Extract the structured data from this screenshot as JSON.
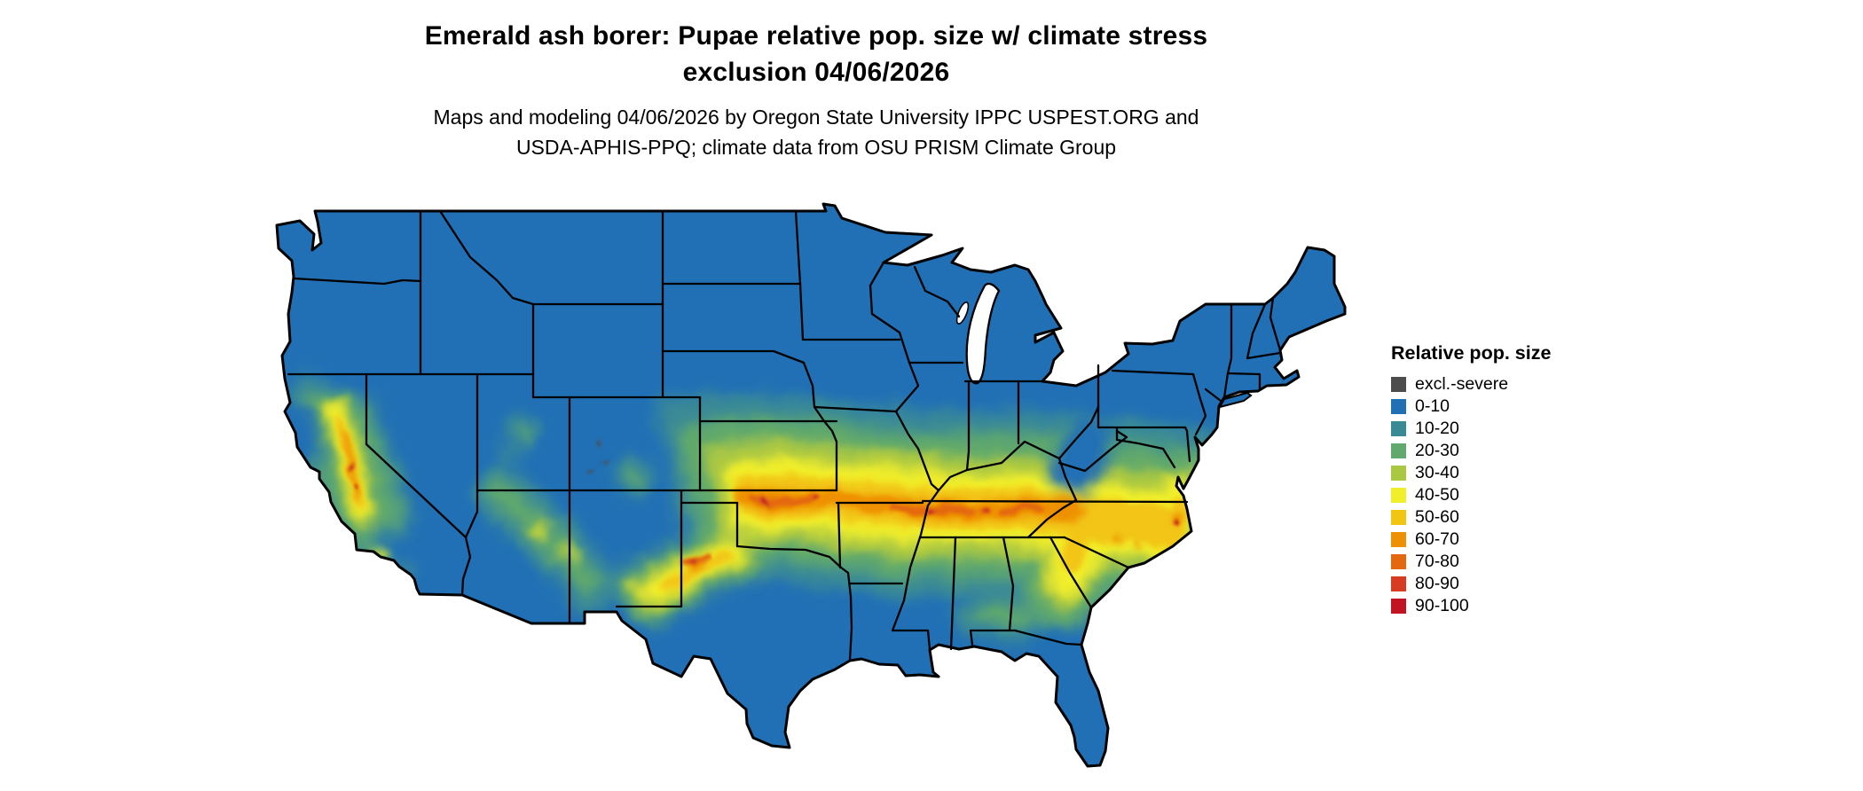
{
  "header": {
    "title_line1": "Emerald ash borer: Pupae relative pop. size w/ climate stress",
    "title_line2": "exclusion 04/06/2026",
    "subtitle_line1": "Maps and modeling 04/06/2026 by Oregon State University IPPC USPEST.ORG and",
    "subtitle_line2": "USDA-APHIS-PPQ; climate data from OSU PRISM Climate Group"
  },
  "legend": {
    "title": "Relative pop. size",
    "items": [
      {
        "label": "excl.-severe",
        "color": "#4d4d4d"
      },
      {
        "label": "0-10",
        "color": "#2170b5"
      },
      {
        "label": "10-20",
        "color": "#3a8a96"
      },
      {
        "label": "20-30",
        "color": "#61a96c"
      },
      {
        "label": "30-40",
        "color": "#abc843"
      },
      {
        "label": "40-50",
        "color": "#f1ee2b"
      },
      {
        "label": "50-60",
        "color": "#f2c513"
      },
      {
        "label": "60-70",
        "color": "#ee9006"
      },
      {
        "label": "70-80",
        "color": "#e4680f"
      },
      {
        "label": "80-90",
        "color": "#d73b21"
      },
      {
        "label": "90-100",
        "color": "#c11322"
      }
    ]
  },
  "map": {
    "region": "Continental United States",
    "base_color": "#2170b5",
    "border_color": "#000000",
    "water_color": "#ffffff"
  },
  "chart_data": {
    "type": "heatmap",
    "title": "Emerald ash borer: Pupae relative pop. size w/ climate stress exclusion 04/06/2026",
    "region": "Continental United States with state boundaries",
    "legend_title": "Relative pop. size",
    "classes": [
      "excl.-severe",
      "0-10",
      "10-20",
      "20-30",
      "30-40",
      "40-50",
      "50-60",
      "60-70",
      "70-80",
      "80-90",
      "90-100"
    ],
    "colors": [
      "#4d4d4d",
      "#2170b5",
      "#3a8a96",
      "#61a96c",
      "#abc843",
      "#f1ee2b",
      "#f2c513",
      "#ee9006",
      "#e4680f",
      "#d73b21",
      "#c11322"
    ],
    "pattern": "Most of the northern, coastal and far-southern U.S. is 0-10 (blue). A warm band of 30-70 (yellow-green to orange, with sparse 80-100 red cells) crosses from Kansas/Oklahoma through Missouri, Tennessee and the Carolinas to the Atlantic coast; additional 40-70 hotspots in California's Central Valley, Arizona/New Mexico uplands and west Texas."
  }
}
